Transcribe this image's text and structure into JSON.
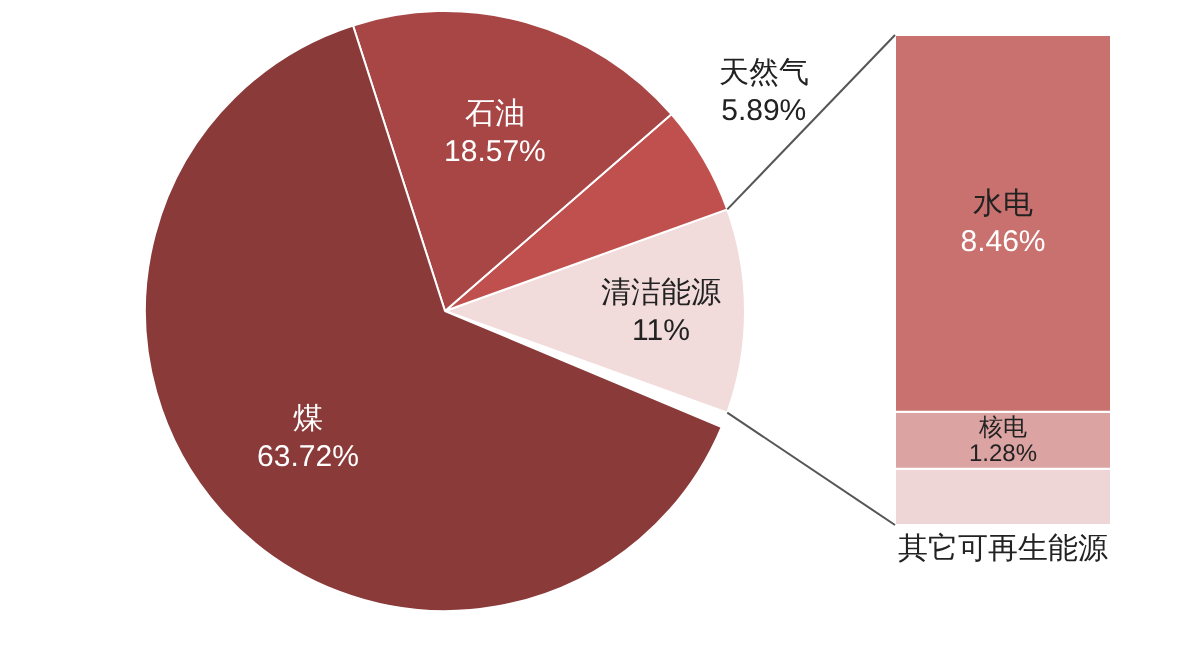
{
  "chart_data": [
    {
      "type": "pie",
      "categories": [
        "煤",
        "石油",
        "天然气",
        "清洁能源"
      ],
      "values": [
        63.72,
        18.57,
        5.89,
        11
      ],
      "value_labels": [
        "63.72%",
        "18.57%",
        "5.89%",
        "11%"
      ],
      "colors": [
        "#8b3a3a",
        "#a84646",
        "#c0504d",
        "#f2dcdb"
      ]
    },
    {
      "type": "bar",
      "stacked": true,
      "categories": [
        null
      ],
      "series": [
        {
          "name": "其它可再生能源",
          "color": "#efd6d6",
          "values": [
            1.26
          ],
          "value_labels": [
            null
          ]
        },
        {
          "name": "核电",
          "color": "#dba3a1",
          "values": [
            1.28
          ],
          "value_labels": [
            "1.28%"
          ]
        },
        {
          "name": "水电",
          "color": "#c8716f",
          "values": [
            8.46
          ],
          "value_labels": [
            "8.46%"
          ]
        }
      ]
    }
  ]
}
